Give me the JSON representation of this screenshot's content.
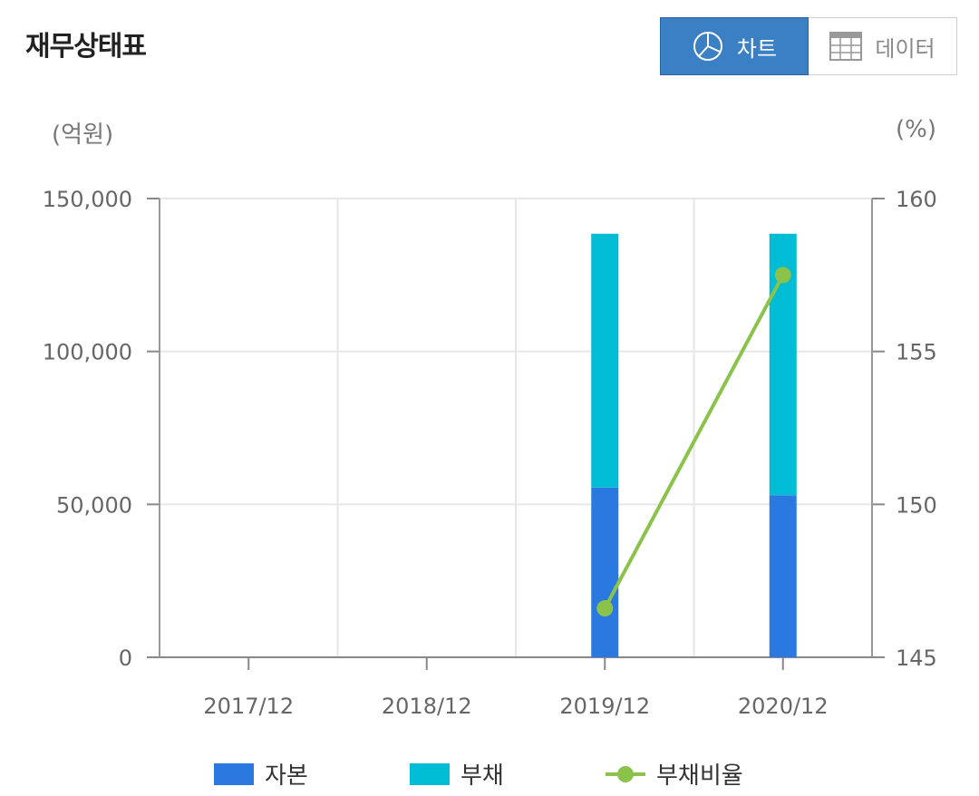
{
  "header": {
    "title": "재무상태표",
    "chart_button_label": "차트",
    "data_button_label": "데이터",
    "chart_icon": "pie-chart-icon",
    "data_icon": "table-grid-icon"
  },
  "units": {
    "left": "(억원)",
    "right": "(%)"
  },
  "colors": {
    "capital": "#2979e0",
    "liability": "#00bcd4",
    "ratio": "#8bc34a",
    "accent": "#3b7fc4"
  },
  "chart_data": {
    "type": "bar",
    "stacked": true,
    "categories": [
      "2017/12",
      "2018/12",
      "2019/12",
      "2020/12"
    ],
    "series": [
      {
        "name": "자본",
        "type": "bar",
        "axis": "left",
        "values": [
          null,
          null,
          55500,
          53000
        ]
      },
      {
        "name": "부채",
        "type": "bar",
        "axis": "left",
        "values": [
          null,
          null,
          83000,
          85500
        ]
      },
      {
        "name": "부채비율",
        "type": "line",
        "axis": "right",
        "values": [
          null,
          null,
          146.6,
          157.5
        ]
      }
    ],
    "ylim_left": [
      0,
      150000
    ],
    "yticks_left": [
      "150,000",
      "100,000",
      "50,000",
      "0"
    ],
    "ylim_right": [
      145,
      160
    ],
    "yticks_right": [
      "160",
      "155",
      "150",
      "145"
    ],
    "grid": true,
    "legend": "bottom"
  }
}
